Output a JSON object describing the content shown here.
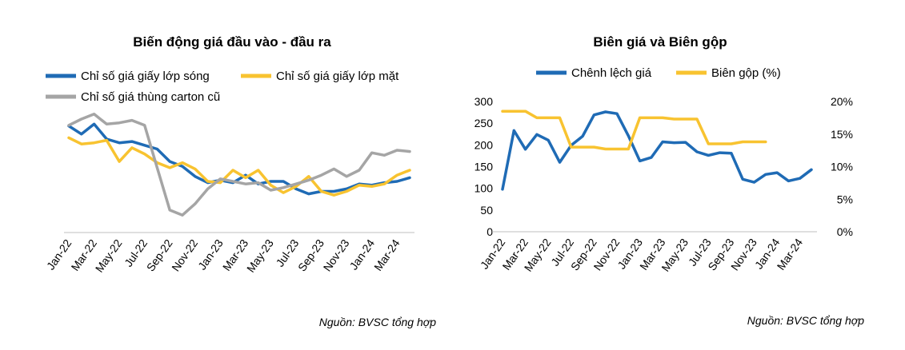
{
  "chart_data": [
    {
      "type": "line",
      "title": "Biến động giá đầu vào - đầu ra",
      "source": "Nguồn: BVSC tổng hợp",
      "x": [
        "Jan-22",
        "Feb-22",
        "Mar-22",
        "Apr-22",
        "May-22",
        "Jun-22",
        "Jul-22",
        "Aug-22",
        "Sep-22",
        "Oct-22",
        "Nov-22",
        "Dec-22",
        "Jan-23",
        "Feb-23",
        "Mar-23",
        "Apr-23",
        "May-23",
        "Jun-23",
        "Jul-23",
        "Aug-23",
        "Sep-23",
        "Oct-23",
        "Nov-23",
        "Dec-23",
        "Jan-24",
        "Feb-24",
        "Mar-24",
        "Apr-24"
      ],
      "x_tick_labels": [
        "Jan-22",
        "Mar-22",
        "May-22",
        "Jul-22",
        "Sep-22",
        "Nov-22",
        "Jan-23",
        "Mar-23",
        "May-23",
        "Jul-23",
        "Sep-23",
        "Nov-23",
        "Jan-24",
        "Mar-24"
      ],
      "ylim": [
        0,
        1
      ],
      "legend_position": "top",
      "grid": false,
      "series": [
        {
          "name": "Chỉ số giá giấy lớp sóng",
          "color": "#1f6bb5",
          "values": [
            0.855,
            0.79,
            0.87,
            0.75,
            0.72,
            0.73,
            0.7,
            0.67,
            0.57,
            0.53,
            0.45,
            0.4,
            0.42,
            0.4,
            0.46,
            0.39,
            0.41,
            0.41,
            0.35,
            0.31,
            0.33,
            0.33,
            0.35,
            0.39,
            0.38,
            0.4,
            0.41,
            0.44
          ]
        },
        {
          "name": "Chỉ số giá giấy lớp mặt",
          "color": "#f8c330",
          "values": [
            0.76,
            0.71,
            0.72,
            0.74,
            0.57,
            0.68,
            0.63,
            0.56,
            0.52,
            0.56,
            0.51,
            0.41,
            0.4,
            0.5,
            0.44,
            0.5,
            0.38,
            0.32,
            0.37,
            0.45,
            0.33,
            0.3,
            0.33,
            0.38,
            0.37,
            0.39,
            0.46,
            0.5
          ]
        },
        {
          "name": "Chỉ số giá thùng carton cũ",
          "color": "#a5a5a5",
          "values": [
            0.86,
            0.91,
            0.95,
            0.87,
            0.88,
            0.9,
            0.86,
            0.52,
            0.18,
            0.14,
            0.23,
            0.35,
            0.43,
            0.41,
            0.39,
            0.4,
            0.34,
            0.36,
            0.39,
            0.42,
            0.46,
            0.51,
            0.45,
            0.5,
            0.64,
            0.62,
            0.66,
            0.65
          ]
        }
      ]
    },
    {
      "type": "line",
      "title": "Biên giá và Biên gộp",
      "source": "Nguồn: BVSC tổng hợp",
      "x": [
        "Jan-22",
        "Feb-22",
        "Mar-22",
        "Apr-22",
        "May-22",
        "Jun-22",
        "Jul-22",
        "Aug-22",
        "Sep-22",
        "Oct-22",
        "Nov-22",
        "Dec-22",
        "Jan-23",
        "Feb-23",
        "Mar-23",
        "Apr-23",
        "May-23",
        "Jun-23",
        "Jul-23",
        "Aug-23",
        "Sep-23",
        "Oct-23",
        "Nov-23",
        "Dec-23",
        "Jan-24",
        "Feb-24",
        "Mar-24",
        "Apr-24"
      ],
      "x_tick_labels": [
        "Jan-22",
        "Mar-22",
        "May-22",
        "Jul-22",
        "Sep-22",
        "Nov-22",
        "Jan-23",
        "Mar-23",
        "May-23",
        "Jul-23",
        "Sep-23",
        "Nov-23",
        "Jan-24",
        "Mar-24"
      ],
      "ylim": [
        0,
        300
      ],
      "y_ticks": [
        0,
        50,
        100,
        150,
        200,
        250,
        300
      ],
      "y2lim": [
        0,
        20
      ],
      "y2_ticks": [
        "0%",
        "5%",
        "10%",
        "15%",
        "20%"
      ],
      "legend_position": "top",
      "grid": false,
      "series": [
        {
          "name": "Chênh lệch giá",
          "color": "#1f6bb5",
          "axis": "left",
          "values": [
            98,
            233,
            190,
            224,
            211,
            160,
            199,
            220,
            269,
            276,
            272,
            221,
            163,
            171,
            207,
            205,
            206,
            184,
            176,
            182,
            181,
            121,
            114,
            132,
            136,
            117,
            123,
            143
          ]
        },
        {
          "name": "Biên gộp (%)",
          "color": "#f8c330",
          "axis": "right",
          "values": [
            18.5,
            18.5,
            18.5,
            17.5,
            17.5,
            17.5,
            13.0,
            13.0,
            13.0,
            12.7,
            12.7,
            12.7,
            17.5,
            17.5,
            17.5,
            17.3,
            17.3,
            17.3,
            13.5,
            13.5,
            13.5,
            13.8,
            13.8,
            13.8,
            null,
            null,
            null,
            null
          ]
        }
      ]
    }
  ]
}
